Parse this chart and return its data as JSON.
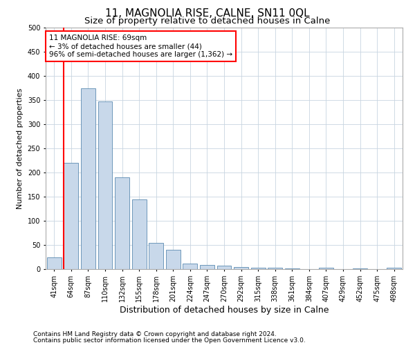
{
  "title": "11, MAGNOLIA RISE, CALNE, SN11 0QL",
  "subtitle": "Size of property relative to detached houses in Calne",
  "xlabel": "Distribution of detached houses by size in Calne",
  "ylabel": "Number of detached properties",
  "footer_line1": "Contains HM Land Registry data © Crown copyright and database right 2024.",
  "footer_line2": "Contains public sector information licensed under the Open Government Licence v3.0.",
  "categories": [
    "41sqm",
    "64sqm",
    "87sqm",
    "110sqm",
    "132sqm",
    "155sqm",
    "178sqm",
    "201sqm",
    "224sqm",
    "247sqm",
    "270sqm",
    "292sqm",
    "315sqm",
    "338sqm",
    "361sqm",
    "384sqm",
    "407sqm",
    "429sqm",
    "452sqm",
    "475sqm",
    "498sqm"
  ],
  "values": [
    25,
    220,
    375,
    347,
    190,
    144,
    54,
    40,
    12,
    9,
    7,
    4,
    3,
    3,
    1,
    0,
    3,
    0,
    1,
    0,
    3
  ],
  "bar_color": "#c8d8ea",
  "bar_edge_color": "#5a8ab0",
  "grid_color": "#c8d4e0",
  "annotation_text_line1": "11 MAGNOLIA RISE: 69sqm",
  "annotation_text_line2": "← 3% of detached houses are smaller (44)",
  "annotation_text_line3": "96% of semi-detached houses are larger (1,362) →",
  "annotation_box_color": "white",
  "annotation_box_edge_color": "red",
  "vline_bin_index": 1,
  "vline_color": "red",
  "ylim": [
    0,
    500
  ],
  "yticks": [
    0,
    50,
    100,
    150,
    200,
    250,
    300,
    350,
    400,
    450,
    500
  ],
  "title_fontsize": 11,
  "subtitle_fontsize": 9.5,
  "xlabel_fontsize": 9,
  "ylabel_fontsize": 8,
  "tick_fontsize": 7,
  "annotation_fontsize": 7.5,
  "footer_fontsize": 6.5
}
